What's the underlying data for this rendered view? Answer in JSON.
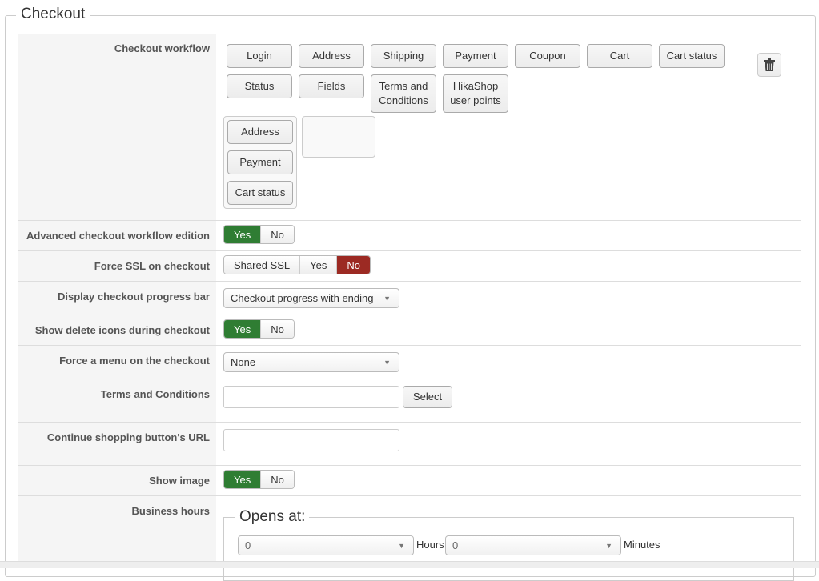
{
  "fieldset": {
    "title": "Checkout"
  },
  "workflow": {
    "label": "Checkout workflow",
    "available": [
      "Login",
      "Address",
      "Shipping",
      "Payment",
      "Coupon",
      "Cart",
      "Cart status",
      "Status",
      "Fields",
      "Terms and Conditions",
      "HikaShop user points"
    ],
    "step1": [
      "Address",
      "Payment",
      "Cart status"
    ],
    "trash_icon": "trash-icon"
  },
  "advanced": {
    "label": "Advanced checkout workflow edition",
    "yes": "Yes",
    "no": "No",
    "value": "Yes"
  },
  "ssl": {
    "label": "Force SSL on checkout",
    "shared": "Shared SSL",
    "yes": "Yes",
    "no": "No",
    "value": "No"
  },
  "progress": {
    "label": "Display checkout progress bar",
    "value": "Checkout progress with ending"
  },
  "delete_icons": {
    "label": "Show delete icons during checkout",
    "yes": "Yes",
    "no": "No",
    "value": "Yes"
  },
  "menu": {
    "label": "Force a menu on the checkout",
    "value": "None"
  },
  "terms": {
    "label": "Terms and Conditions",
    "value": "",
    "select": "Select"
  },
  "continue_url": {
    "label": "Continue shopping button's URL",
    "value": ""
  },
  "show_image": {
    "label": "Show image",
    "yes": "Yes",
    "no": "No",
    "value": "Yes"
  },
  "business": {
    "label": "Business hours",
    "opens": "Opens at:",
    "hours_value": "0",
    "hours_label": "Hours",
    "minutes_value": "0",
    "minutes_label": "Minutes"
  },
  "colors": {
    "yes_active": "#2f7d33",
    "no_active": "#9c2a23"
  }
}
